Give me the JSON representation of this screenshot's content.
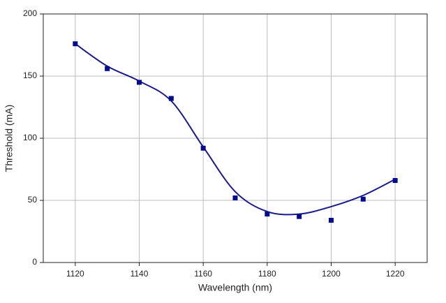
{
  "chart_data": {
    "type": "scatter",
    "x_label": "Wavelength (nm)",
    "y_label": "Threshold (mA)",
    "x": [
      1120,
      1130,
      1140,
      1150,
      1160,
      1170,
      1180,
      1190,
      1200,
      1210,
      1220
    ],
    "series": [
      {
        "type": "scatter",
        "color": "#000c8c",
        "values": [
          176,
          156,
          145,
          132,
          92,
          52,
          39,
          37,
          34,
          51,
          66
        ]
      },
      {
        "type": "line",
        "color": "#1a1a8c",
        "values": [
          176,
          158,
          146,
          130,
          93,
          57,
          41,
          39,
          45,
          54,
          67
        ]
      }
    ],
    "xlim": [
      1110,
      1230
    ],
    "xticks": [
      1120,
      1140,
      1160,
      1180,
      1200,
      1220
    ],
    "ylim": [
      0,
      200
    ],
    "yticks": [
      0,
      50,
      100,
      150,
      200
    ],
    "grid": true
  }
}
